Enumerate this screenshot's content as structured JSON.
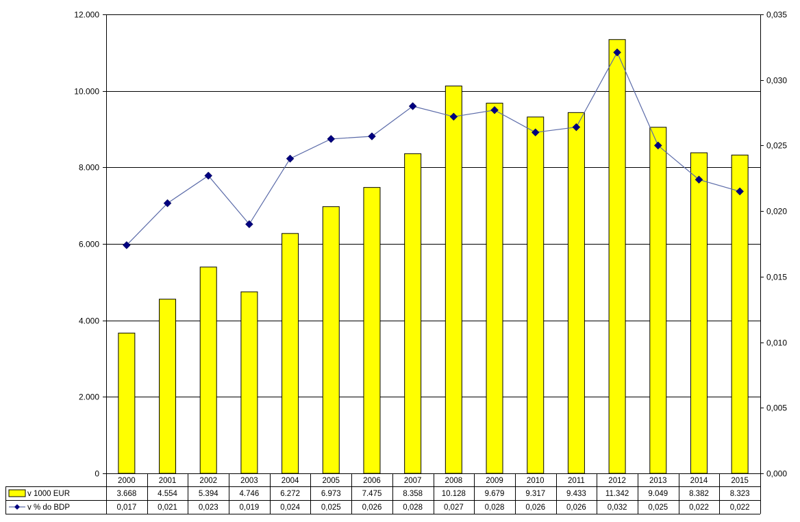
{
  "chart_data": {
    "type": "bar",
    "categories": [
      "2000",
      "2001",
      "2002",
      "2003",
      "2004",
      "2005",
      "2006",
      "2007",
      "2008",
      "2009",
      "2010",
      "2011",
      "2012",
      "2013",
      "2014",
      "2015"
    ],
    "series": [
      {
        "name": "v 1000 EUR",
        "type": "bar",
        "axis": "left",
        "color": "#ffff00",
        "values": [
          3668,
          4554,
          5394,
          4746,
          6272,
          6973,
          7475,
          8358,
          10128,
          9679,
          9317,
          9433,
          11342,
          9049,
          8382,
          8323
        ],
        "labels": [
          "3.668",
          "4.554",
          "5.394",
          "4.746",
          "6.272",
          "6.973",
          "7.475",
          "8.358",
          "10.128",
          "9.679",
          "9.317",
          "9.433",
          "11.342",
          "9.049",
          "8.382",
          "8.323"
        ]
      },
      {
        "name": "v % do BDP",
        "type": "line",
        "axis": "right",
        "color": "#000080",
        "values": [
          0.0174,
          0.0206,
          0.0227,
          0.019,
          0.024,
          0.0255,
          0.0257,
          0.028,
          0.0272,
          0.0277,
          0.026,
          0.0264,
          0.0321,
          0.025,
          0.0224,
          0.0215
        ],
        "labels": [
          "0,017",
          "0,021",
          "0,023",
          "0,019",
          "0,024",
          "0,025",
          "0,026",
          "0,028",
          "0,027",
          "0,028",
          "0,026",
          "0,026",
          "0,032",
          "0,025",
          "0,022",
          "0,022"
        ]
      }
    ],
    "ylim_left": [
      0,
      12000
    ],
    "yticks_left": [
      "0",
      "2.000",
      "4.000",
      "6.000",
      "8.000",
      "10.000",
      "12.000"
    ],
    "ylim_right": [
      0,
      0.035
    ],
    "yticks_right": [
      "0,000",
      "0,005",
      "0,010",
      "0,015",
      "0,020",
      "0,025",
      "0,030",
      "0,035"
    ],
    "grid": true,
    "legend": "data-table",
    "title": "",
    "xlabel": "",
    "ylabel": ""
  }
}
